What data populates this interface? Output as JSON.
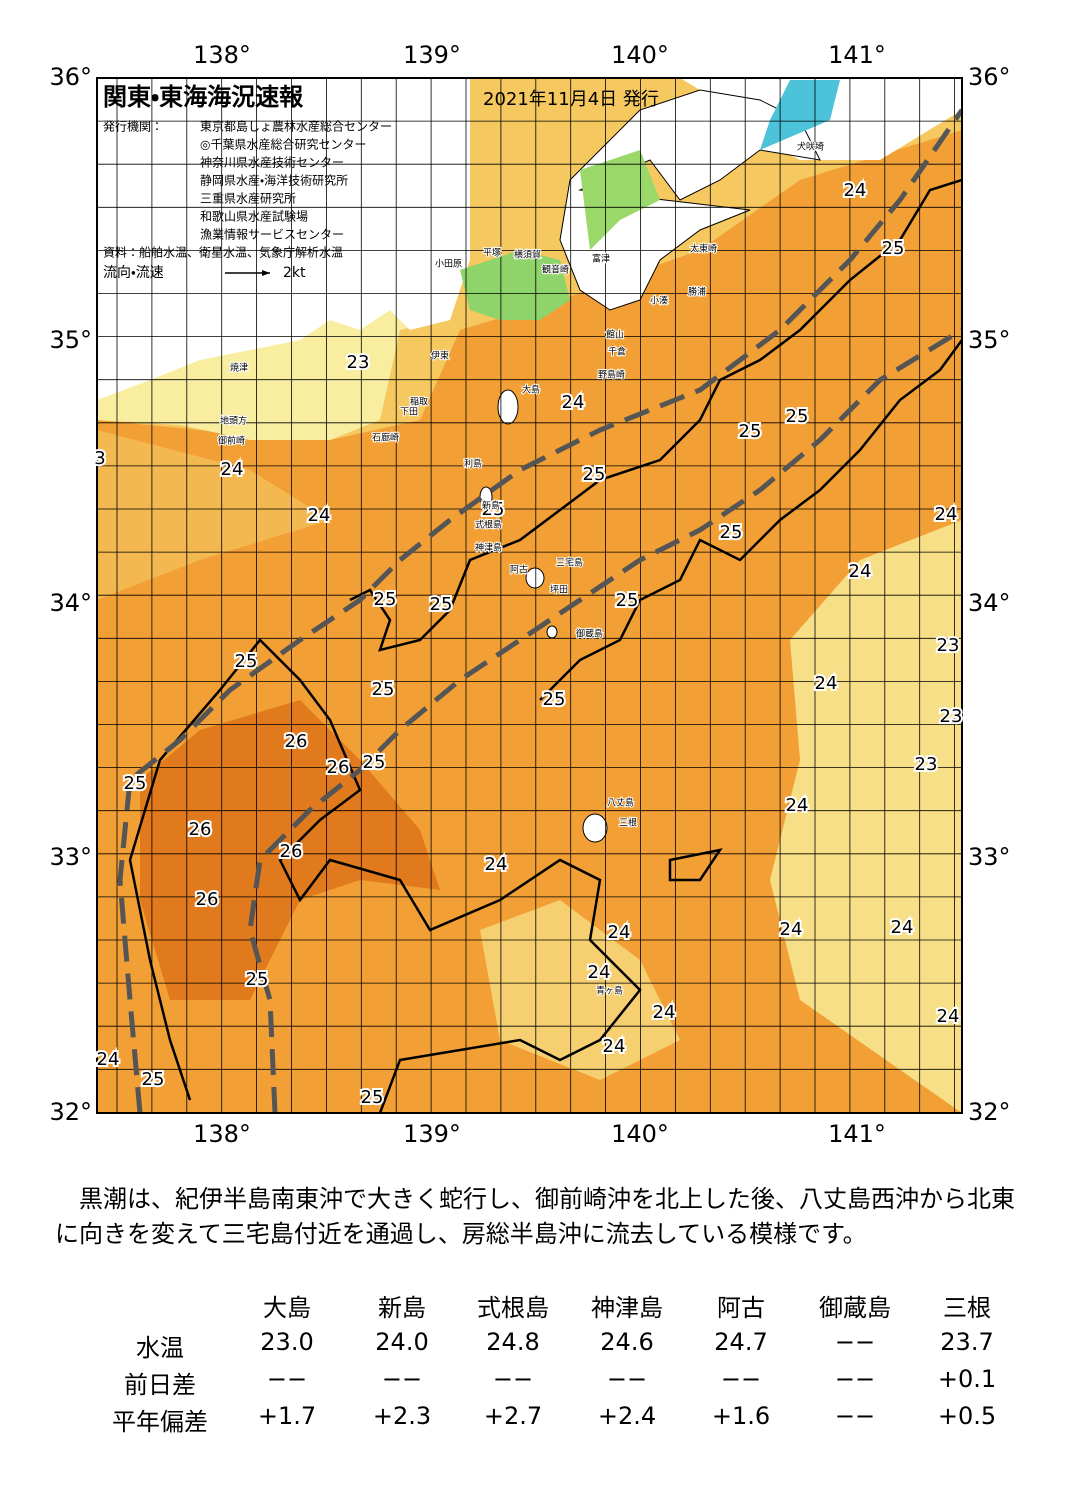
{
  "header": {
    "title": "関東・東海海況速報",
    "date": "2021年11月4日 発行",
    "publisher_label": "発行機関：",
    "publishers": [
      "東京都島しょ農林水産総合センター",
      "◎千葉県水産総合研究センター",
      "神奈川県水産技術センター",
      "静岡県水産・海洋技術研究所",
      "三重県水産研究所",
      "和歌山県水産試験場",
      "漁業情報サービスセンター"
    ],
    "source": "資料：船舶水温、衛星水温、気象庁解析水温",
    "legend_label": "流向・流速",
    "legend_speed": "2kt"
  },
  "map": {
    "lon_labels": [
      "138°",
      "139°",
      "140°",
      "141°"
    ],
    "lat_labels": [
      "36°",
      "35°",
      "34°",
      "33°",
      "32°"
    ],
    "temperature_labels": [
      "23",
      "24",
      "25",
      "25",
      "24",
      "25",
      "24",
      "25",
      "24",
      "25",
      "24",
      "25",
      "25",
      "25",
      "23",
      "25",
      "24",
      "25",
      "25",
      "23",
      "26",
      "26",
      "25",
      "23",
      "25",
      "24",
      "26",
      "26",
      "24",
      "26",
      "24",
      "24",
      "24",
      "24",
      "25",
      "24",
      "24",
      "24",
      "24",
      "25",
      "25",
      "24",
      "25",
      "3"
    ],
    "place_names": [
      "犬吠埼",
      "太東崎",
      "勝浦",
      "小湊",
      "館山",
      "千倉",
      "野島崎",
      "富津",
      "横須賀",
      "観音崎",
      "平塚",
      "小田原",
      "伊東",
      "大島",
      "稲取",
      "下田",
      "石廊崎",
      "焼津",
      "地頭方",
      "御前崎",
      "利島",
      "新島",
      "式根島",
      "神津島",
      "三宅島",
      "阿古",
      "坪田",
      "御蔵島",
      "八丈島",
      "三根",
      "青ヶ島"
    ]
  },
  "description": "黒潮は、紀伊半島南東沖で大きく蛇行し、御前崎沖を北上した後、八丈島西沖から北東に向きを変えて三宅島付近を通過し、房総半島沖に流去している模様です。",
  "table": {
    "columns": [
      "大島",
      "新島",
      "式根島",
      "神津島",
      "阿古",
      "御蔵島",
      "三根"
    ],
    "rows": [
      {
        "label": "水温",
        "values": [
          "23.0",
          "24.0",
          "24.8",
          "24.6",
          "24.7",
          "−−",
          "23.7"
        ]
      },
      {
        "label": "前日差",
        "values": [
          "−−",
          "−−",
          "−−",
          "−−",
          "−−",
          "−−",
          "+0.1"
        ]
      },
      {
        "label": "平年偏差",
        "values": [
          "+1.7",
          "+2.3",
          "+2.7",
          "+2.4",
          "+1.6",
          "−−",
          "+0.5"
        ]
      }
    ]
  }
}
